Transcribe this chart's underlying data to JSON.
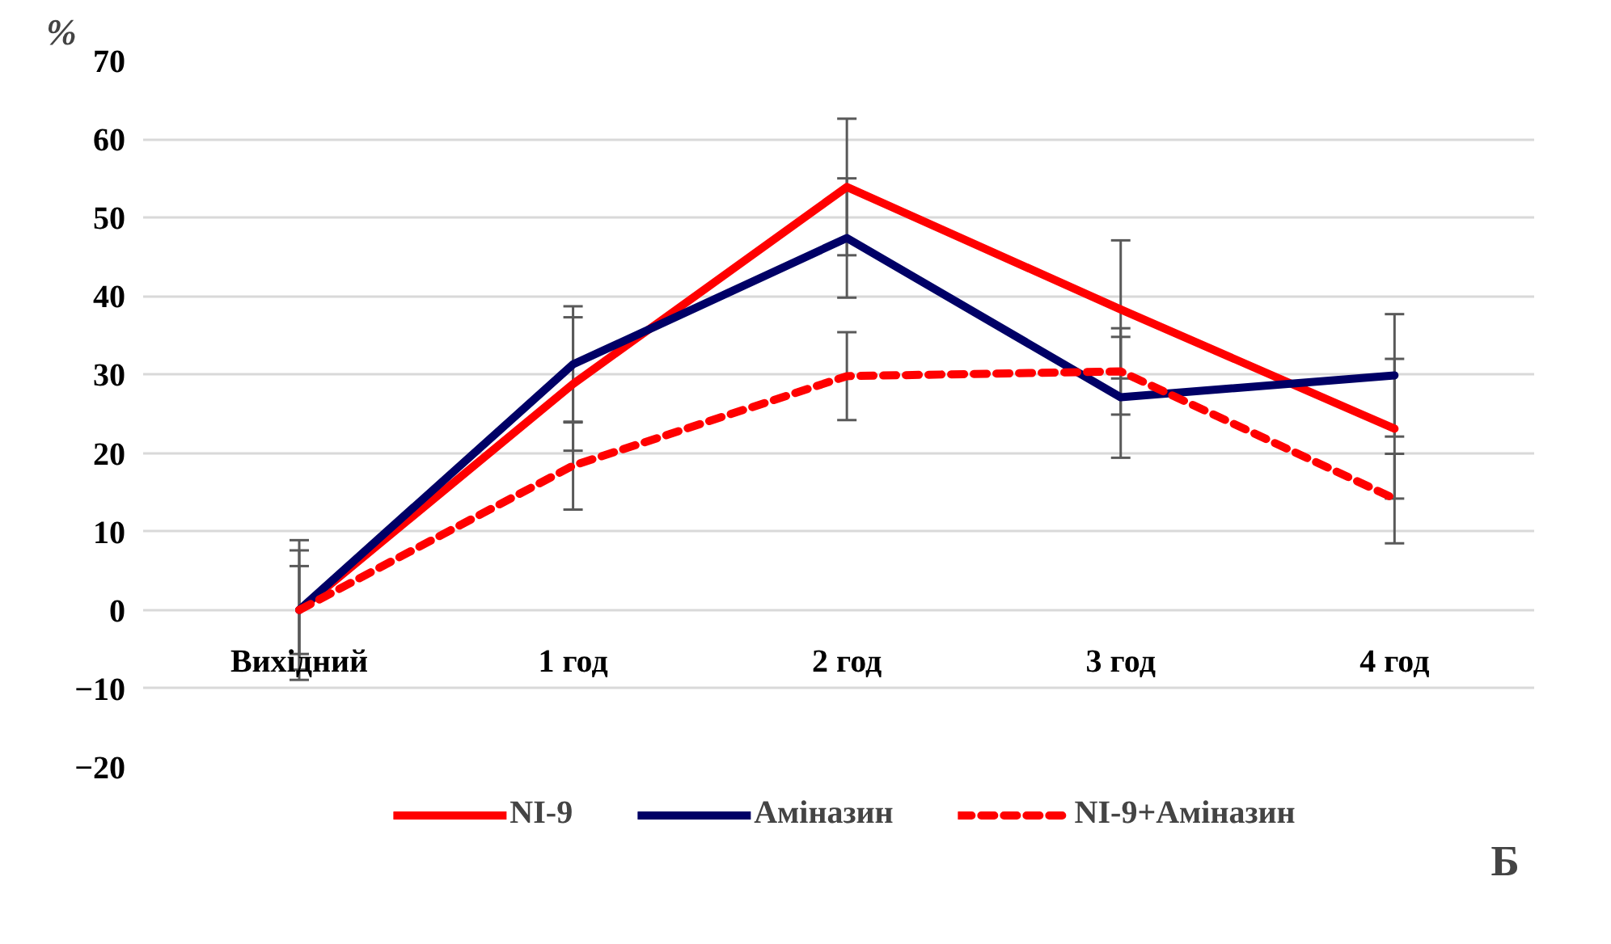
{
  "chart_data": {
    "type": "line",
    "ylabel": "%",
    "categories": [
      "Вихідний",
      "1 год",
      "2 год",
      "3 год",
      "4 год"
    ],
    "series": [
      {
        "name": "NI-9",
        "color": "#ff0000",
        "line_style": "solid",
        "values": [
          0,
          28.8,
          53.9,
          38.3,
          23.1
        ],
        "errors": [
          5.6,
          8.5,
          8.7,
          8.8,
          8.9
        ]
      },
      {
        "name": "Аміназин",
        "color": "#000066",
        "line_style": "solid",
        "values": [
          0,
          31.3,
          47.4,
          27.1,
          29.9
        ],
        "errors": [
          8.9,
          7.4,
          7.6,
          7.7,
          7.8
        ]
      },
      {
        "name": "NI-9+Аміназин",
        "color": "#ff0000",
        "line_style": "dashed",
        "values": [
          0,
          18.4,
          29.8,
          30.4,
          14.2
        ],
        "errors": [
          7.6,
          5.6,
          5.6,
          5.5,
          5.7
        ]
      }
    ],
    "ylim": [
      -20,
      70
    ],
    "yticks": [
      -20,
      -10,
      0,
      10,
      20,
      30,
      40,
      50,
      60,
      70
    ],
    "grid": "y",
    "legend": "bottom",
    "marker": "none",
    "annotations": [
      "Б"
    ]
  }
}
